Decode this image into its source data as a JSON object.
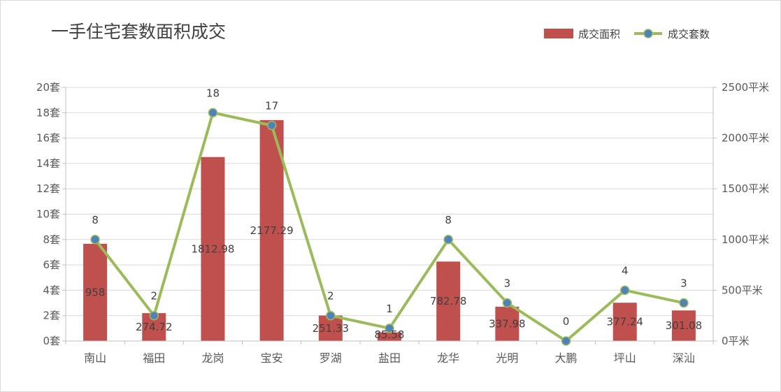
{
  "chart_data": {
    "type": "bar",
    "title": "一手住宅套数面积成交",
    "categories": [
      "南山",
      "福田",
      "龙岗",
      "宝安",
      "罗湖",
      "盐田",
      "龙华",
      "光明",
      "大鹏",
      "坪山",
      "深汕"
    ],
    "series": [
      {
        "name": "成交面积",
        "type": "bar",
        "axis": "right",
        "values": [
          958,
          274.72,
          1812.98,
          2177.29,
          251.33,
          85.58,
          782.78,
          337.98,
          0,
          377.24,
          301.08
        ],
        "labels": [
          "958",
          "274.72",
          "1812.98",
          "2177.29",
          "251.33",
          "85.58",
          "782.78",
          "337.98",
          "",
          "377.24",
          "301.08"
        ],
        "color": "#c0504d"
      },
      {
        "name": "成交套数",
        "type": "line",
        "axis": "left",
        "values": [
          8,
          2,
          18,
          17,
          2,
          1,
          8,
          3,
          0,
          4,
          3
        ],
        "labels": [
          "8",
          "2",
          "18",
          "17",
          "2",
          "1",
          "8",
          "3",
          "0",
          "4",
          "3"
        ],
        "color": "#9bbb59",
        "marker_color": "#4f81bd"
      }
    ],
    "y_left": {
      "ticks": [
        0,
        2,
        4,
        6,
        8,
        10,
        12,
        14,
        16,
        18,
        20
      ],
      "tick_labels": [
        "0套",
        "2套",
        "4套",
        "6套",
        "8套",
        "10套",
        "12套",
        "14套",
        "16套",
        "18套",
        "20套"
      ],
      "range": [
        0,
        20
      ]
    },
    "y_right": {
      "ticks": [
        0,
        500,
        1000,
        1500,
        2000,
        2500
      ],
      "tick_labels": [
        "0平米",
        "500平米",
        "1000平米",
        "1500平米",
        "2000平米",
        "2500平米"
      ],
      "range": [
        0,
        2500
      ]
    },
    "grid": true,
    "legend_position": "top-right",
    "colors": {
      "gridline": "#d9d9d9",
      "axis": "#bfbfbf"
    }
  }
}
